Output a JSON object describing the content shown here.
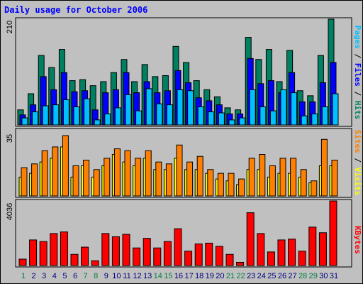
{
  "title": "Daily usage for October 2006",
  "colors": {
    "hits": "#008060",
    "files": "#0000ff",
    "pages": "#00c0ff",
    "visits": "#ffff00",
    "sites": "#ff8000",
    "kbytes": "#ff0000",
    "weekday_label": "#000080",
    "weekend_label": "#008040",
    "background": "#c0c0c0"
  },
  "chart_data": [
    {
      "type": "bar",
      "ylabel": "210",
      "ylim": [
        0,
        210
      ],
      "categories": [
        "1",
        "2",
        "3",
        "4",
        "5",
        "6",
        "7",
        "8",
        "9",
        "10",
        "11",
        "12",
        "13",
        "14",
        "15",
        "16",
        "17",
        "18",
        "19",
        "20",
        "21",
        "22",
        "23",
        "24",
        "25",
        "26",
        "27",
        "28",
        "29",
        "30",
        "31"
      ],
      "weekend_days": [
        "1",
        "7",
        "8",
        "14",
        "15",
        "21",
        "22",
        "28",
        "29"
      ],
      "legend": [
        "Pages",
        "Files",
        "Hits"
      ],
      "series": [
        {
          "name": "Hits",
          "values": [
            30,
            62,
            138,
            114,
            150,
            88,
            90,
            78,
            86,
            104,
            130,
            86,
            120,
            96,
            98,
            156,
            124,
            88,
            70,
            56,
            34,
            30,
            174,
            130,
            150,
            86,
            148,
            68,
            58,
            138,
            210
          ]
        },
        {
          "name": "Files",
          "values": [
            20,
            40,
            96,
            70,
            104,
            66,
            68,
            30,
            64,
            70,
            104,
            64,
            86,
            64,
            68,
            108,
            84,
            54,
            48,
            40,
            22,
            22,
            132,
            82,
            88,
            64,
            104,
            46,
            46,
            84,
            124
          ]
        },
        {
          "name": "Pages",
          "values": [
            14,
            26,
            38,
            40,
            50,
            36,
            52,
            10,
            22,
            34,
            60,
            28,
            72,
            42,
            40,
            70,
            68,
            36,
            26,
            24,
            10,
            14,
            70,
            36,
            28,
            70,
            64,
            18,
            22,
            36,
            62
          ]
        }
      ]
    },
    {
      "type": "bar",
      "ylabel": "35",
      "ylim": [
        0,
        35
      ],
      "legend": [
        "Sites",
        "Visits"
      ],
      "series": [
        {
          "name": "Visits",
          "values": [
            10,
            12,
            18,
            20,
            26,
            10,
            16,
            10,
            16,
            22,
            18,
            16,
            20,
            14,
            14,
            20,
            14,
            14,
            12,
            9,
            8,
            6,
            14,
            14,
            10,
            12,
            12,
            10,
            7,
            16,
            16
          ]
        },
        {
          "name": "Sites",
          "values": [
            15,
            17,
            24,
            26,
            32,
            16,
            19,
            14,
            20,
            25,
            24,
            20,
            24,
            18,
            17,
            27,
            18,
            21,
            14,
            12,
            12,
            9,
            20,
            22,
            16,
            20,
            20,
            14,
            8,
            30,
            19
          ]
        }
      ]
    },
    {
      "type": "bar",
      "ylabel": "4036",
      "ylim": [
        0,
        4036
      ],
      "legend": [
        "KBytes"
      ],
      "series": [
        {
          "name": "KBytes",
          "values": [
            400,
            1600,
            1500,
            2000,
            2100,
            700,
            1150,
            300,
            2000,
            1800,
            1950,
            1100,
            1700,
            1100,
            1500,
            2300,
            900,
            1350,
            1400,
            1200,
            700,
            200,
            3300,
            2000,
            850,
            1600,
            1650,
            900,
            2400,
            2050,
            4036
          ]
        }
      ]
    }
  ]
}
